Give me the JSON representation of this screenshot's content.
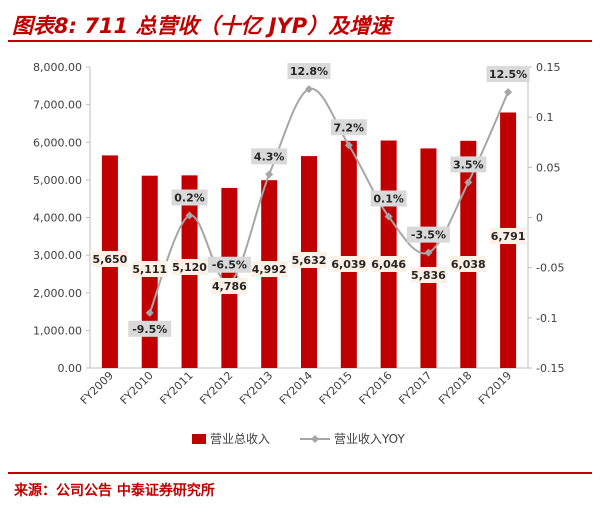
{
  "header": {
    "title": "图表8:  711 总营收（十亿 JYP）及增速"
  },
  "footer": {
    "source": "来源：公司公告  中泰证券研究所"
  },
  "colors": {
    "bar": "#c00000",
    "line": "#a6a6a6",
    "accent": "#c00000",
    "label_bg": "#fdf1e6",
    "yoy_label_bg": "#d9d9d9"
  },
  "chart_data": {
    "type": "bar+line",
    "categories": [
      "FY2009",
      "FY2010",
      "FY2011",
      "FY2012",
      "FY2013",
      "FY2014",
      "FY2015",
      "FY2016",
      "FY2017",
      "FY2018",
      "FY2019"
    ],
    "series": [
      {
        "name": "营业总收入",
        "type": "bar",
        "axis": "left",
        "values": [
          5650,
          5111,
          5120,
          4786,
          4992,
          5632,
          6039,
          6046,
          5836,
          6038,
          6791
        ],
        "labels": [
          "5,650",
          "5,111",
          "5,120",
          "4,786",
          "4,992",
          "5,632",
          "6,039",
          "6,046",
          "5,836",
          "6,038",
          "6,791"
        ]
      },
      {
        "name": "营业收入YOY",
        "type": "line",
        "axis": "right",
        "values": [
          null,
          -0.095,
          0.002,
          -0.065,
          0.043,
          0.128,
          0.072,
          0.001,
          -0.035,
          0.035,
          0.125
        ],
        "labels": [
          null,
          "-9.5%",
          "0.2%",
          "-6.5%",
          "4.3%",
          "12.8%",
          "7.2%",
          "0.1%",
          "-3.5%",
          "3.5%",
          "12.5%"
        ]
      }
    ],
    "y_left": {
      "range": [
        0,
        8000
      ],
      "ticks": [
        "0.00",
        "1,000.00",
        "2,000.00",
        "3,000.00",
        "4,000.00",
        "5,000.00",
        "6,000.00",
        "7,000.00",
        "8,000.00"
      ]
    },
    "y_right": {
      "range": [
        -0.15,
        0.15
      ],
      "ticks": [
        "-0.15",
        "-0.1",
        "-0.05",
        "0",
        "0.05",
        "0.1",
        "0.15"
      ]
    },
    "legend": {
      "placement": "bottom-center"
    },
    "grid": false
  }
}
